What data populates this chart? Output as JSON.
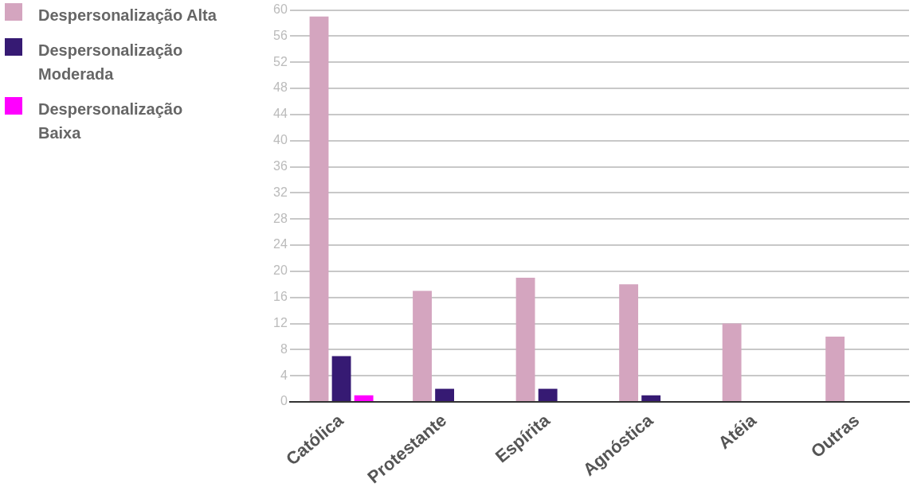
{
  "chart_data": {
    "type": "bar",
    "categories": [
      "Católica",
      "Protestante",
      "Espírita",
      "Agnóstica",
      "Atéia",
      "Outras"
    ],
    "series": [
      {
        "name": "Despersonalização Alta",
        "color": "#d4a5bf",
        "values": [
          59,
          17,
          19,
          18,
          12,
          10
        ]
      },
      {
        "name": "Despersonalização Moderada",
        "color": "#361a73",
        "values": [
          7,
          2,
          2,
          1,
          0,
          0
        ]
      },
      {
        "name": "Despersonalização Baixa",
        "color": "#ff00ff",
        "values": [
          1,
          0,
          0,
          0,
          0,
          0
        ]
      }
    ],
    "ylim": [
      0,
      60
    ],
    "yticks": [
      0,
      4,
      8,
      12,
      16,
      20,
      24,
      28,
      32,
      36,
      40,
      44,
      48,
      52,
      56,
      60
    ],
    "grid": "y",
    "legend": "top left"
  }
}
